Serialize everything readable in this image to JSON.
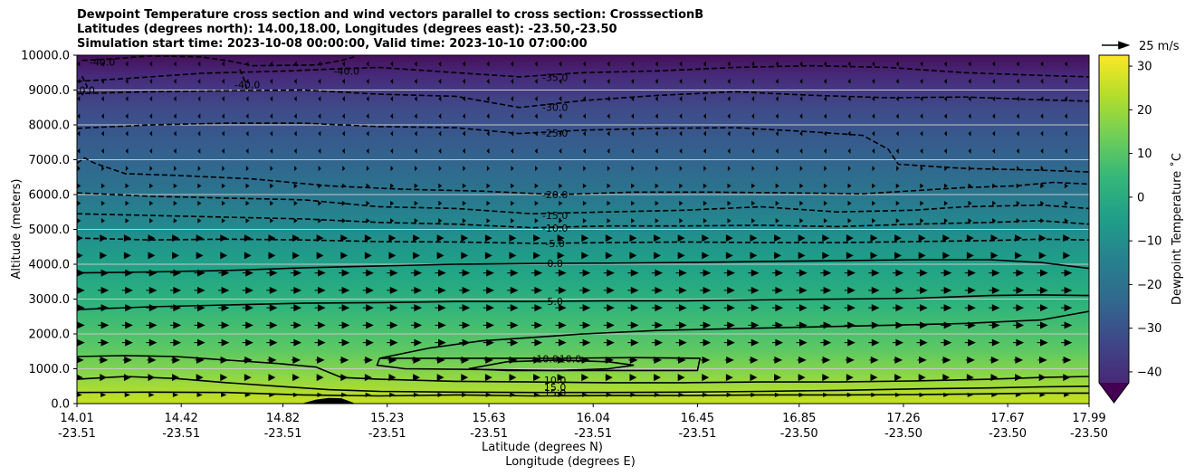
{
  "title_lines": [
    "Dewpoint Temperature cross section and wind vectors parallel to cross section: CrosssectionB",
    "Latitudes (degrees north): 14.00,18.00, Longitudes (degrees east): -23.50,-23.50",
    "Simulation start time: 2023-10-08 00:00:00, Valid time: 2023-10-10 07:00:00"
  ],
  "chart_data": {
    "type": "heatmap",
    "subtype": "filled contour cross-section with contour lines and wind vectors",
    "ylabel": "Altitude (meters)",
    "xlabel_lat": "Latitude (degrees N)",
    "xlabel_lon": "Longitude (degrees E)",
    "ylim": [
      0,
      10000
    ],
    "yticks": [
      "0.0",
      "1000.0",
      "2000.0",
      "3000.0",
      "4000.0",
      "5000.0",
      "6000.0",
      "7000.0",
      "8000.0",
      "9000.0",
      "10000.0"
    ],
    "ytick_values": [
      0,
      1000,
      2000,
      3000,
      4000,
      5000,
      6000,
      7000,
      8000,
      9000,
      10000
    ],
    "xlim": [
      14.01,
      17.99
    ],
    "xticks_lat": [
      "14.01",
      "14.42",
      "14.82",
      "15.23",
      "15.63",
      "16.04",
      "16.45",
      "16.85",
      "17.26",
      "17.67",
      "17.99"
    ],
    "xticks_lon": [
      "-23.51",
      "-23.51",
      "-23.51",
      "-23.51",
      "-23.51",
      "-23.51",
      "-23.51",
      "-23.50",
      "-23.50",
      "-23.50",
      "-23.50"
    ],
    "xtick_values": [
      14.01,
      14.42,
      14.82,
      15.23,
      15.63,
      16.04,
      16.45,
      16.85,
      17.26,
      17.67,
      17.99
    ],
    "grid": "horizontal lines at y ticks",
    "colormap": "viridis",
    "colorbar": {
      "label": "Dewpoint Temperature ˚C",
      "ticks": [
        "30",
        "20",
        "10",
        "0",
        "−10",
        "−20",
        "−30",
        "−40"
      ],
      "tick_values": [
        30,
        20,
        10,
        0,
        -10,
        -20,
        -30,
        -40
      ],
      "range": [
        -42.5,
        32.5
      ],
      "extend": "min"
    },
    "quiver_key": "25 m/s",
    "contour_levels_dashed": [
      "-40.0",
      "-35.0",
      "-30.0",
      "-25.0",
      "-20.0",
      "-15.0",
      "-10.0",
      "-5.0"
    ],
    "contour_levels_solid": [
      "0.0",
      "5.0",
      "10.0",
      "15.0"
    ],
    "contour_labels": [
      {
        "text": "-40.0",
        "x": 14.11,
        "y": 9800
      },
      {
        "text": "-40.0",
        "x": 14.03,
        "y": 9000
      },
      {
        "text": "-40.0",
        "x": 14.68,
        "y": 9150
      },
      {
        "text": "-40.0",
        "x": 15.07,
        "y": 9550
      },
      {
        "text": "-35.0",
        "x": 15.89,
        "y": 9370
      },
      {
        "text": "-30.0",
        "x": 15.89,
        "y": 8510
      },
      {
        "text": "-25.0",
        "x": 15.89,
        "y": 7770
      },
      {
        "text": "-20.0",
        "x": 15.89,
        "y": 6000
      },
      {
        "text": "-15.0",
        "x": 15.89,
        "y": 5400
      },
      {
        "text": "-10.0",
        "x": 15.89,
        "y": 5040
      },
      {
        "text": "-5.0",
        "x": 15.89,
        "y": 4600
      },
      {
        "text": "0.0",
        "x": 15.89,
        "y": 4030
      },
      {
        "text": "5.0",
        "x": 15.89,
        "y": 2930
      },
      {
        "text": "10.0",
        "x": 15.86,
        "y": 1280
      },
      {
        "text": "10.0",
        "x": 15.95,
        "y": 1280
      },
      {
        "text": "10.0",
        "x": 15.89,
        "y": 680
      },
      {
        "text": "15.0",
        "x": 15.89,
        "y": 470
      },
      {
        "text": "15.0",
        "x": 15.89,
        "y": 310
      }
    ],
    "contours": [
      {
        "level": -40,
        "points": [
          [
            14.03,
            9850
          ],
          [
            14.12,
            9880
          ],
          [
            14.3,
            9980
          ],
          [
            14.5,
            9950
          ],
          [
            14.62,
            9820
          ],
          [
            14.7,
            9700
          ],
          [
            14.95,
            9720
          ],
          [
            15.05,
            9850
          ],
          [
            15.1,
            9950
          ]
        ]
      },
      {
        "level": -40,
        "points": [
          [
            14.03,
            9400
          ],
          [
            14.05,
            9100
          ],
          [
            14.03,
            8850
          ]
        ]
      },
      {
        "level": -40,
        "points": [
          [
            14.65,
            9600
          ],
          [
            14.67,
            9250
          ],
          [
            14.68,
            8950
          ]
        ]
      },
      {
        "level": -35,
        "points": [
          [
            14.01,
            9250
          ],
          [
            14.2,
            9330
          ],
          [
            14.5,
            9480
          ],
          [
            14.7,
            9520
          ],
          [
            14.85,
            9550
          ],
          [
            15.0,
            9600
          ],
          [
            15.2,
            9650
          ],
          [
            15.5,
            9500
          ],
          [
            15.75,
            9380
          ],
          [
            16.0,
            9500
          ],
          [
            16.3,
            9550
          ],
          [
            16.6,
            9650
          ],
          [
            16.9,
            9700
          ],
          [
            17.2,
            9650
          ],
          [
            17.5,
            9500
          ],
          [
            17.8,
            9420
          ],
          [
            17.99,
            9380
          ]
        ]
      },
      {
        "level": -30,
        "points": [
          [
            14.01,
            8900
          ],
          [
            14.3,
            8950
          ],
          [
            14.6,
            8980
          ],
          [
            14.9,
            9000
          ],
          [
            15.2,
            8880
          ],
          [
            15.5,
            8820
          ],
          [
            15.75,
            8500
          ],
          [
            16.0,
            8700
          ],
          [
            16.3,
            8850
          ],
          [
            16.6,
            8950
          ],
          [
            16.9,
            8850
          ],
          [
            17.2,
            8780
          ],
          [
            17.5,
            8800
          ],
          [
            17.8,
            8720
          ],
          [
            17.99,
            8680
          ]
        ]
      },
      {
        "level": -25,
        "points": [
          [
            14.01,
            7900
          ],
          [
            14.3,
            8000
          ],
          [
            14.6,
            8050
          ],
          [
            14.9,
            8050
          ],
          [
            15.2,
            7950
          ],
          [
            15.5,
            7920
          ],
          [
            15.75,
            7750
          ],
          [
            16.0,
            7850
          ],
          [
            16.3,
            7900
          ],
          [
            16.6,
            7920
          ],
          [
            16.9,
            7800
          ],
          [
            17.1,
            7700
          ],
          [
            17.2,
            7300
          ],
          [
            17.24,
            6870
          ],
          [
            17.5,
            6750
          ],
          [
            17.8,
            6700
          ],
          [
            17.99,
            6650
          ]
        ]
      },
      {
        "level": -20,
        "points": [
          [
            14.01,
            6900
          ],
          [
            14.04,
            7050
          ],
          [
            14.08,
            6900
          ],
          [
            14.2,
            6600
          ],
          [
            14.4,
            6550
          ],
          [
            14.7,
            6450
          ],
          [
            15.0,
            6250
          ],
          [
            15.3,
            6150
          ],
          [
            15.6,
            6100
          ],
          [
            15.9,
            6000
          ],
          [
            16.2,
            6070
          ],
          [
            16.5,
            6070
          ],
          [
            16.8,
            6050
          ],
          [
            17.1,
            6020
          ],
          [
            17.5,
            6200
          ],
          [
            17.7,
            6250
          ],
          [
            17.85,
            6350
          ],
          [
            17.99,
            6300
          ]
        ]
      },
      {
        "level": -15,
        "points": [
          [
            14.01,
            6050
          ],
          [
            14.3,
            5950
          ],
          [
            14.6,
            5900
          ],
          [
            14.9,
            5850
          ],
          [
            15.2,
            5650
          ],
          [
            15.5,
            5600
          ],
          [
            15.8,
            5450
          ],
          [
            16.1,
            5500
          ],
          [
            16.4,
            5550
          ],
          [
            16.7,
            5650
          ],
          [
            17.0,
            5500
          ],
          [
            17.3,
            5550
          ],
          [
            17.5,
            5650
          ],
          [
            17.8,
            5700
          ],
          [
            17.99,
            5600
          ]
        ]
      },
      {
        "level": -10,
        "points": [
          [
            14.01,
            5450
          ],
          [
            14.3,
            5400
          ],
          [
            14.6,
            5350
          ],
          [
            14.9,
            5300
          ],
          [
            15.2,
            5200
          ],
          [
            15.5,
            5150
          ],
          [
            15.8,
            5050
          ],
          [
            16.1,
            5100
          ],
          [
            16.4,
            5100
          ],
          [
            16.7,
            5120
          ],
          [
            17.0,
            5080
          ],
          [
            17.3,
            5150
          ],
          [
            17.6,
            5200
          ],
          [
            17.8,
            5250
          ],
          [
            17.99,
            5150
          ]
        ]
      },
      {
        "level": -5,
        "points": [
          [
            14.01,
            4750
          ],
          [
            14.3,
            4700
          ],
          [
            14.6,
            4720
          ],
          [
            14.9,
            4700
          ],
          [
            15.2,
            4650
          ],
          [
            15.5,
            4640
          ],
          [
            15.8,
            4600
          ],
          [
            16.1,
            4620
          ],
          [
            16.4,
            4640
          ],
          [
            16.7,
            4620
          ],
          [
            17.0,
            4620
          ],
          [
            17.3,
            4650
          ],
          [
            17.6,
            4680
          ],
          [
            17.8,
            4720
          ],
          [
            17.99,
            4700
          ]
        ]
      },
      {
        "level": 0,
        "points": [
          [
            14.01,
            3750
          ],
          [
            14.3,
            3780
          ],
          [
            14.6,
            3820
          ],
          [
            14.9,
            3900
          ],
          [
            15.2,
            3950
          ],
          [
            15.5,
            4000
          ],
          [
            15.8,
            4020
          ],
          [
            16.1,
            4030
          ],
          [
            16.4,
            4050
          ],
          [
            16.7,
            4080
          ],
          [
            17.0,
            4100
          ],
          [
            17.3,
            4130
          ],
          [
            17.6,
            4130
          ],
          [
            17.8,
            4050
          ],
          [
            17.99,
            3880
          ]
        ]
      },
      {
        "level": 5,
        "points": [
          [
            14.01,
            2700
          ],
          [
            14.3,
            2780
          ],
          [
            14.6,
            2830
          ],
          [
            14.9,
            2880
          ],
          [
            15.2,
            2900
          ],
          [
            15.5,
            2930
          ],
          [
            15.8,
            2930
          ],
          [
            16.1,
            2950
          ],
          [
            16.4,
            2950
          ],
          [
            16.7,
            2980
          ],
          [
            17.0,
            3000
          ],
          [
            17.3,
            3020
          ],
          [
            17.6,
            3100
          ],
          [
            17.8,
            3120
          ],
          [
            17.99,
            3100
          ]
        ]
      },
      {
        "level": 10,
        "points": [
          [
            14.01,
            1350
          ],
          [
            14.2,
            1380
          ],
          [
            14.4,
            1350
          ],
          [
            14.6,
            1250
          ],
          [
            14.8,
            1150
          ],
          [
            14.95,
            1050
          ],
          [
            15.0,
            900
          ],
          [
            15.05,
            750
          ],
          [
            15.2,
            700
          ],
          [
            15.5,
            640
          ],
          [
            15.8,
            620
          ],
          [
            16.1,
            600
          ],
          [
            16.4,
            600
          ],
          [
            16.7,
            620
          ],
          [
            17.0,
            620
          ],
          [
            17.3,
            650
          ],
          [
            17.6,
            700
          ],
          [
            17.8,
            750
          ],
          [
            17.99,
            780
          ]
        ]
      },
      {
        "level": 10,
        "points": [
          [
            15.2,
            1300
          ],
          [
            15.4,
            1600
          ],
          [
            15.6,
            1800
          ],
          [
            15.8,
            1900
          ],
          [
            16.0,
            2000
          ],
          [
            16.3,
            2100
          ],
          [
            16.6,
            2150
          ],
          [
            16.9,
            2200
          ],
          [
            17.2,
            2250
          ],
          [
            17.5,
            2300
          ],
          [
            17.8,
            2400
          ],
          [
            17.99,
            2650
          ]
        ]
      },
      {
        "level": 10,
        "points": [
          [
            15.2,
            1300
          ],
          [
            15.19,
            1100
          ],
          [
            15.3,
            1000
          ],
          [
            15.6,
            980
          ],
          [
            15.9,
            950
          ],
          [
            16.2,
            950
          ],
          [
            16.45,
            950
          ],
          [
            16.46,
            1300
          ],
          [
            16.2,
            1320
          ],
          [
            15.9,
            1300
          ],
          [
            15.6,
            1300
          ],
          [
            15.4,
            1300
          ],
          [
            15.2,
            1300
          ]
        ]
      },
      {
        "level": 10,
        "points": [
          [
            15.55,
            1000
          ],
          [
            15.7,
            1200
          ],
          [
            15.9,
            1250
          ],
          [
            16.1,
            1200
          ],
          [
            16.2,
            1100
          ],
          [
            16.1,
            1000
          ],
          [
            15.9,
            950
          ],
          [
            15.7,
            950
          ],
          [
            15.55,
            1000
          ]
        ]
      },
      {
        "level": 15,
        "points": [
          [
            14.01,
            700
          ],
          [
            14.2,
            780
          ],
          [
            14.4,
            720
          ],
          [
            14.6,
            600
          ],
          [
            14.8,
            500
          ],
          [
            15.0,
            400
          ],
          [
            15.2,
            350
          ],
          [
            15.5,
            330
          ],
          [
            15.8,
            320
          ],
          [
            16.1,
            320
          ],
          [
            16.4,
            330
          ],
          [
            16.7,
            350
          ],
          [
            17.0,
            380
          ],
          [
            17.3,
            420
          ],
          [
            17.6,
            450
          ],
          [
            17.8,
            480
          ],
          [
            17.99,
            500
          ]
        ]
      },
      {
        "level": 15,
        "points": [
          [
            14.01,
            320
          ],
          [
            14.3,
            330
          ],
          [
            14.6,
            320
          ],
          [
            14.9,
            250
          ],
          [
            15.2,
            220
          ],
          [
            15.5,
            250
          ],
          [
            15.8,
            220
          ],
          [
            16.1,
            230
          ],
          [
            16.4,
            230
          ],
          [
            16.7,
            250
          ],
          [
            17.0,
            250
          ],
          [
            17.3,
            260
          ],
          [
            17.6,
            280
          ],
          [
            17.8,
            300
          ],
          [
            17.99,
            300
          ]
        ]
      }
    ],
    "terrain": {
      "points": [
        [
          14.9,
          0
        ],
        [
          14.95,
          100
        ],
        [
          15.0,
          150
        ],
        [
          15.05,
          140
        ],
        [
          15.1,
          0
        ]
      ]
    }
  }
}
